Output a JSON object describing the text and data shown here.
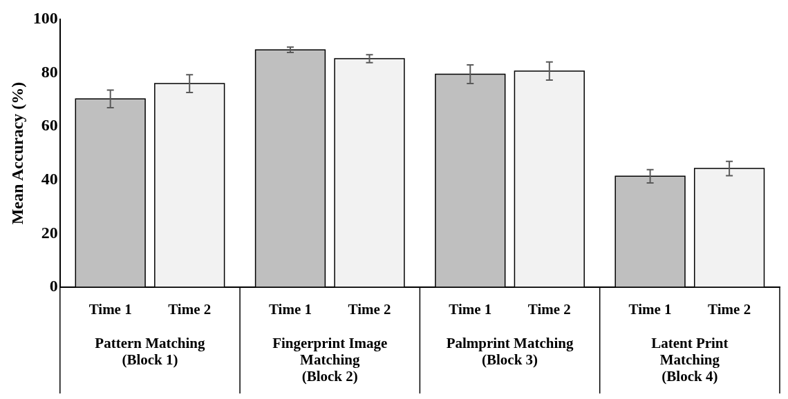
{
  "chart_data": {
    "type": "bar",
    "ylabel": "Mean Accuracy (%)",
    "categories": [
      "Pattern Matching (Block 1)",
      "Fingerprint Image Matching (Block 2)",
      "Palmprint Matching (Block 3)",
      "Latent Print Matching (Block 4)"
    ],
    "series": [
      {
        "name": "Time 1",
        "color": "#bfbfbf",
        "values": [
          70.3,
          88.6,
          79.5,
          41.4
        ],
        "errors": [
          3.3,
          1,
          3.5,
          2.5
        ]
      },
      {
        "name": "Time 2",
        "color": "#f2f2f2",
        "values": [
          76,
          85.3,
          80.7,
          44.3
        ],
        "errors": [
          3.3,
          1.5,
          3.4,
          2.7
        ]
      }
    ],
    "ylim": [
      0,
      100
    ],
    "yticks": [
      0,
      20,
      40,
      60,
      80,
      100
    ],
    "grid": false,
    "legend": false
  }
}
